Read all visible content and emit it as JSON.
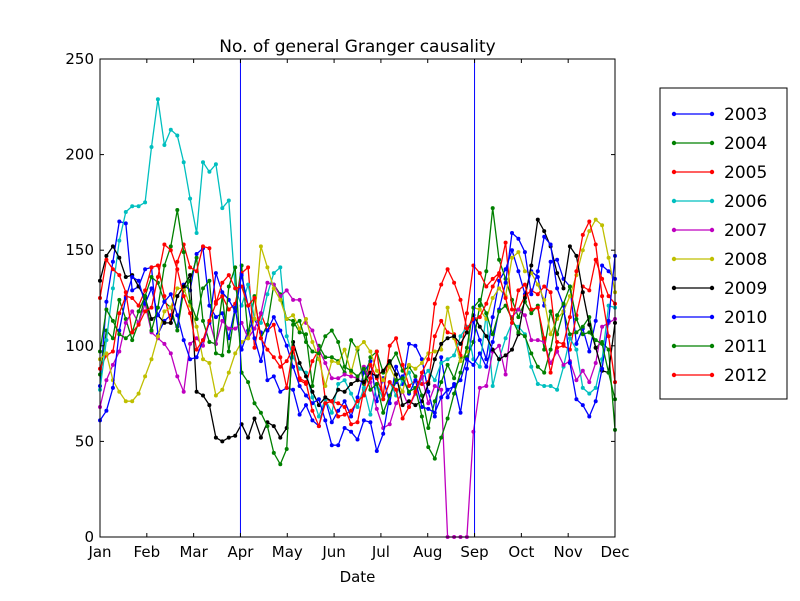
{
  "chart_data": {
    "type": "line",
    "title": "No. of general Granger causality",
    "xlabel": "Date",
    "ylabel": "",
    "ylim": [
      0,
      250
    ],
    "yticks": [
      0,
      50,
      100,
      150,
      200,
      250
    ],
    "xlim": [
      0,
      11
    ],
    "xticks": [
      {
        "label": "Jan",
        "value": 0
      },
      {
        "label": "Feb",
        "value": 1
      },
      {
        "label": "Mar",
        "value": 2
      },
      {
        "label": "Apr",
        "value": 3
      },
      {
        "label": "May",
        "value": 4
      },
      {
        "label": "Jun",
        "value": 5
      },
      {
        "label": "Jul",
        "value": 6
      },
      {
        "label": "Aug",
        "value": 7
      },
      {
        "label": "Sep",
        "value": 8
      },
      {
        "label": "Oct",
        "value": 9
      },
      {
        "label": "Nov",
        "value": 10
      },
      {
        "label": "Dec",
        "value": 11
      }
    ],
    "vlines": [
      {
        "at": "Apr",
        "value": 3,
        "color": "#0000ff"
      },
      {
        "at": "Sep",
        "value": 8,
        "color": "#0000ff"
      }
    ],
    "grid": false,
    "legend_position": "right",
    "x_sampling": {
      "start": 0,
      "end": 11,
      "points_per_series": 81
    },
    "series": [
      {
        "name": "2003",
        "color": "#0000ff",
        "values": [
          79,
          123,
          144,
          165,
          164,
          129,
          131,
          140,
          141,
          106,
          113,
          116,
          110,
          132,
          129,
          148,
          151,
          121,
          115,
          117,
          104,
          120,
          98,
          108,
          114,
          107,
          82,
          84,
          76,
          78,
          77,
          64,
          69,
          61,
          58,
          72,
          60,
          66,
          71,
          63,
          73,
          86,
          92,
          71,
          83,
          70,
          89,
          80,
          101,
          100,
          93,
          76,
          63,
          94,
          73,
          80,
          65,
          88,
          113,
          103,
          93,
          115,
          134,
          140,
          150,
          139,
          127,
          139,
          136,
          121,
          144,
          145,
          135,
          131,
          101,
          109,
          97,
          113,
          142,
          139,
          135
        ]
      },
      {
        "name": "2004",
        "color": "#008000",
        "values": [
          85,
          108,
          104,
          124,
          114,
          103,
          112,
          126,
          136,
          133,
          123,
          120,
          108,
          129,
          134,
          146,
          113,
          102,
          101,
          126,
          97,
          119,
          142,
          106,
          126,
          104,
          111,
          132,
          127,
          114,
          113,
          107,
          106,
          79,
          100,
          94,
          94,
          92,
          86,
          103,
          98,
          80,
          94,
          97,
          86,
          91,
          96,
          87,
          89,
          84,
          74,
          57,
          71,
          81,
          90,
          83,
          94,
          94,
          102,
          121,
          139,
          172,
          145,
          135,
          124,
          115,
          123,
          117,
          121,
          98,
          118,
          106,
          118,
          106,
          107,
          110,
          115,
          99,
          102,
          98,
          56
        ]
      },
      {
        "name": "2005",
        "color": "#ff0000",
        "values": [
          88,
          95,
          97,
          117,
          126,
          125,
          121,
          129,
          141,
          142,
          126,
          112,
          144,
          153,
          141,
          139,
          152,
          151,
          123,
          126,
          119,
          122,
          138,
          141,
          99,
          117,
          108,
          111,
          94,
          78,
          98,
          82,
          80,
          92,
          98,
          72,
          71,
          70,
          68,
          59,
          60,
          77,
          90,
          83,
          74,
          100,
          104,
          90,
          79,
          82,
          80,
          81,
          105,
          113,
          107,
          106,
          95,
          117,
          142,
          138,
          131,
          135,
          138,
          154,
          119,
          119,
          126,
          129,
          127,
          131,
          128,
          99,
          100,
          98,
          116,
          131,
          129,
          145,
          135,
          126,
          122
        ]
      },
      {
        "name": "2006",
        "color": "#00bfbf",
        "values": [
          77,
          103,
          130,
          155,
          170,
          173,
          173,
          175,
          204,
          229,
          205,
          213,
          210,
          196,
          177,
          159,
          196,
          191,
          195,
          172,
          176,
          130,
          121,
          132,
          114,
          112,
          127,
          138,
          141,
          105,
          94,
          88,
          86,
          73,
          63,
          72,
          65,
          80,
          82,
          75,
          68,
          78,
          64,
          80,
          72,
          81,
          74,
          82,
          86,
          75,
          83,
          87,
          82,
          91,
          93,
          95,
          105,
          110,
          93,
          89,
          117,
          79,
          93,
          104,
          112,
          110,
          106,
          89,
          80,
          79,
          79,
          77,
          89,
          104,
          98,
          78,
          75,
          78,
          93,
          121,
          120
        ]
      },
      {
        "name": "2007",
        "color": "#bf00bf",
        "values": [
          68,
          82,
          90,
          97,
          112,
          118,
          112,
          122,
          107,
          104,
          101,
          96,
          84,
          76,
          101,
          104,
          100,
          113,
          101,
          113,
          109,
          109,
          112,
          104,
          109,
          117,
          133,
          132,
          126,
          129,
          124,
          124,
          112,
          108,
          98,
          91,
          83,
          83,
          85,
          84,
          83,
          89,
          81,
          67,
          57,
          59,
          70,
          76,
          68,
          75,
          84,
          70,
          79,
          77,
          0,
          0,
          0,
          0,
          55,
          78,
          79,
          97,
          100,
          85,
          115,
          119,
          116,
          103,
          103,
          102,
          91,
          97,
          90,
          92,
          82,
          87,
          81,
          91,
          110,
          112,
          114
        ]
      },
      {
        "name": "2008",
        "color": "#bfbf00",
        "values": [
          93,
          96,
          82,
          76,
          71,
          71,
          75,
          84,
          93,
          105,
          118,
          120,
          130,
          130,
          121,
          110,
          93,
          91,
          74,
          77,
          86,
          96,
          102,
          104,
          114,
          152,
          141,
          130,
          124,
          114,
          116,
          109,
          114,
          102,
          93,
          79,
          92,
          91,
          98,
          86,
          99,
          102,
          97,
          87,
          82,
          89,
          82,
          76,
          90,
          88,
          91,
          96,
          97,
          98,
          120,
          104,
          92,
          97,
          120,
          119,
          114,
          125,
          130,
          126,
          146,
          149,
          139,
          138,
          132,
          124,
          106,
          114,
          118,
          126,
          137,
          150,
          160,
          166,
          163,
          146,
          128
        ]
      },
      {
        "name": "2009",
        "color": "#000000",
        "values": [
          134,
          147,
          152,
          146,
          136,
          137,
          131,
          125,
          114,
          116,
          112,
          112,
          126,
          131,
          137,
          76,
          74,
          69,
          52,
          50,
          52,
          53,
          59,
          52,
          62,
          52,
          60,
          58,
          52,
          57,
          102,
          91,
          84,
          76,
          69,
          73,
          71,
          77,
          76,
          80,
          82,
          81,
          86,
          84,
          87,
          92,
          85,
          69,
          71,
          69,
          71,
          80,
          93,
          101,
          104,
          105,
          101,
          107,
          116,
          110,
          105,
          98,
          93,
          95,
          98,
          106,
          125,
          142,
          166,
          160,
          152,
          138,
          130,
          152,
          147,
          128,
          111,
          99,
          87,
          86,
          112
        ]
      },
      {
        "name": "2010",
        "color": "#0000ff",
        "values": [
          61,
          66,
          78,
          108,
          125,
          136,
          134,
          122,
          130,
          116,
          123,
          127,
          116,
          103,
          93,
          94,
          103,
          112,
          138,
          128,
          124,
          118,
          137,
          121,
          104,
          92,
          108,
          115,
          108,
          100,
          89,
          79,
          74,
          70,
          72,
          61,
          48,
          48,
          57,
          55,
          51,
          61,
          60,
          45,
          54,
          74,
          81,
          84,
          75,
          82,
          68,
          67,
          65,
          73,
          77,
          79,
          82,
          93,
          90,
          96,
          89,
          102,
          119,
          133,
          159,
          156,
          149,
          127,
          139,
          157,
          153,
          130,
          121,
          91,
          72,
          69,
          63,
          71,
          88,
          113,
          147
        ]
      },
      {
        "name": "2011",
        "color": "#008000",
        "values": [
          97,
          119,
          113,
          106,
          104,
          107,
          118,
          126,
          108,
          120,
          142,
          152,
          171,
          149,
          123,
          114,
          130,
          134,
          96,
          95,
          131,
          141,
          86,
          81,
          70,
          65,
          58,
          44,
          38,
          46,
          111,
          113,
          102,
          97,
          96,
          105,
          108,
          102,
          89,
          87,
          84,
          88,
          77,
          80,
          65,
          74,
          82,
          83,
          76,
          78,
          63,
          47,
          41,
          52,
          62,
          75,
          86,
          99,
          120,
          124,
          117,
          106,
          118,
          121,
          114,
          107,
          105,
          96,
          89,
          86,
          98,
          116,
          122,
          131,
          114,
          106,
          107,
          103,
          101,
          86,
          72
        ]
      },
      {
        "name": "2012",
        "color": "#ff0000",
        "values": [
          125,
          145,
          140,
          137,
          128,
          107,
          111,
          118,
          120,
          136,
          153,
          150,
          140,
          126,
          117,
          98,
          103,
          113,
          122,
          133,
          137,
          130,
          131,
          121,
          125,
          104,
          98,
          94,
          89,
          92,
          99,
          83,
          81,
          66,
          58,
          70,
          71,
          63,
          64,
          66,
          71,
          74,
          83,
          97,
          72,
          81,
          77,
          62,
          68,
          76,
          86,
          93,
          122,
          132,
          140,
          133,
          124,
          109,
          114,
          115,
          122,
          131,
          137,
          125,
          112,
          129,
          132,
          119,
          120,
          104,
          86,
          102,
          101,
          115,
          139,
          158,
          165,
          153,
          126,
          105,
          81
        ]
      }
    ]
  }
}
